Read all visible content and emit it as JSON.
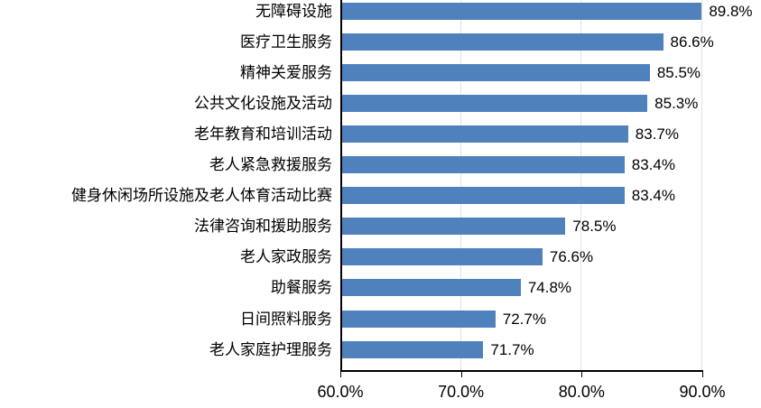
{
  "chart_data": {
    "type": "bar",
    "orientation": "horizontal",
    "title": "",
    "categories": [
      "无障碍设施",
      "医疗卫生服务",
      "精神关爱服务",
      "公共文化设施及活动",
      "老年教育和培训活动",
      "老人紧急救援服务",
      "健身休闲场所设施及老人体育活动比赛",
      "法律咨询和援助服务",
      "老人家政服务",
      "助餐服务",
      "日间照料服务",
      "老人家庭护理服务"
    ],
    "values": [
      89.8,
      86.6,
      85.5,
      85.3,
      83.7,
      83.4,
      83.4,
      78.5,
      76.6,
      74.8,
      72.7,
      71.7
    ],
    "value_labels": [
      "89.8%",
      "86.6%",
      "85.5%",
      "85.3%",
      "83.7%",
      "83.4%",
      "83.4%",
      "78.5%",
      "76.6%",
      "74.8%",
      "72.7%",
      "71.7%"
    ],
    "xlim": [
      60,
      90
    ],
    "x_tick_values": [
      60,
      70,
      80,
      90
    ],
    "x_tick_labels": [
      "60.0%",
      "70.0%",
      "80.0%",
      "90.0%"
    ],
    "bar_color": "#4F81BD",
    "gridline_color": "#e2e2e2",
    "axis_color": "#000000",
    "grid": "vertical-major",
    "legend": "none"
  }
}
